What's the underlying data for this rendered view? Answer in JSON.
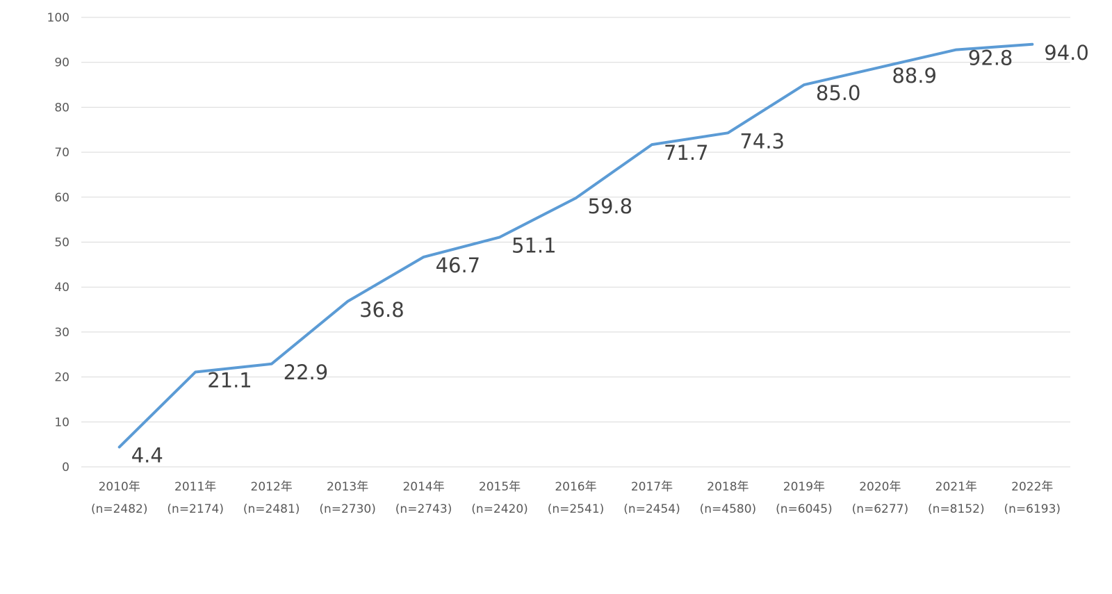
{
  "chart_data": {
    "type": "line",
    "title": "",
    "xlabel": "",
    "ylabel": "",
    "ylim": [
      0,
      100
    ],
    "yticks": [
      0,
      10,
      20,
      30,
      40,
      50,
      60,
      70,
      80,
      90,
      100
    ],
    "grid": true,
    "legend": "none",
    "categories": [
      {
        "year": "2010年",
        "n": "(n=2482)"
      },
      {
        "year": "2011年",
        "n": "(n=2174)"
      },
      {
        "year": "2012年",
        "n": "(n=2481)"
      },
      {
        "year": "2013年",
        "n": "(n=2730)"
      },
      {
        "year": "2014年",
        "n": "(n=2743)"
      },
      {
        "year": "2015年",
        "n": "(n=2420)"
      },
      {
        "year": "2016年",
        "n": "(n=2541)"
      },
      {
        "year": "2017年",
        "n": "(n=2454)"
      },
      {
        "year": "2018年",
        "n": "(n=4580)"
      },
      {
        "year": "2019年",
        "n": "(n=6045)"
      },
      {
        "year": "2020年",
        "n": "(n=6277)"
      },
      {
        "year": "2021年",
        "n": "(n=8152)"
      },
      {
        "year": "2022年",
        "n": "(n=6193)"
      }
    ],
    "series": [
      {
        "values": [
          4.4,
          21.1,
          22.9,
          36.8,
          46.7,
          51.1,
          59.8,
          71.7,
          74.3,
          85.0,
          88.9,
          92.8,
          94.0
        ],
        "labels": [
          "4.4",
          "21.1",
          "22.9",
          "36.8",
          "46.7",
          "51.1",
          "59.8",
          "71.7",
          "74.3",
          "85.0",
          "88.9",
          "92.8",
          "94.0"
        ],
        "color": "#5b9bd5"
      }
    ]
  }
}
